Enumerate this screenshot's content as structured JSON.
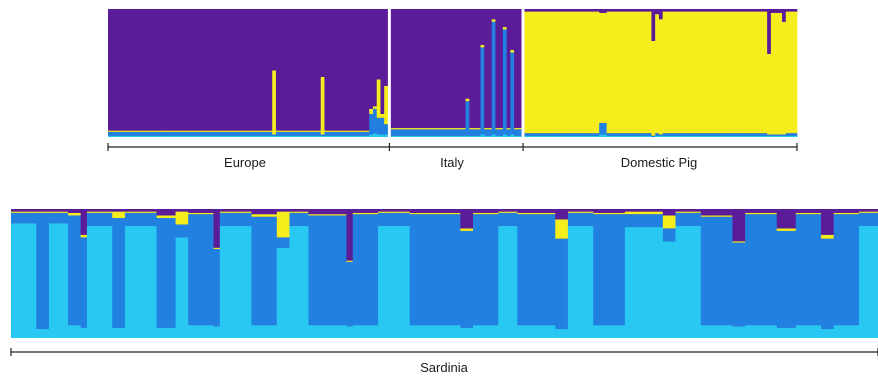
{
  "chart_data": [
    {
      "type": "bar",
      "stacked": true,
      "orientation": "vertical",
      "ylim": [
        0,
        1
      ],
      "cluster_colors": [
        "#5b1c99",
        "#f5ee1c",
        "#2180e0",
        "#29c8f2"
      ],
      "groups": [
        {
          "label": "Europe",
          "separator_after": true,
          "individuals": [
            {
              "n": 44,
              "proportions": [
                0.95,
                0.01,
                0.03,
                0.01
              ]
            },
            {
              "n": 1,
              "proportions": [
                0.48,
                0.5,
                0.01,
                0.01
              ]
            },
            {
              "n": 12,
              "proportions": [
                0.95,
                0.01,
                0.03,
                0.01
              ]
            },
            {
              "n": 1,
              "proportions": [
                0.53,
                0.45,
                0.01,
                0.01
              ]
            },
            {
              "n": 12,
              "proportions": [
                0.95,
                0.01,
                0.03,
                0.01
              ]
            },
            {
              "n": 1,
              "proportions": [
                0.78,
                0.04,
                0.16,
                0.02
              ]
            },
            {
              "n": 1,
              "proportions": [
                0.76,
                0.02,
                0.19,
                0.03
              ]
            },
            {
              "n": 1,
              "proportions": [
                0.55,
                0.3,
                0.13,
                0.02
              ]
            },
            {
              "n": 1,
              "proportions": [
                0.82,
                0.03,
                0.13,
                0.02
              ]
            },
            {
              "n": 1,
              "proportions": [
                0.6,
                0.3,
                0.08,
                0.02
              ]
            }
          ]
        },
        {
          "label": "Italy",
          "separator_after": true,
          "individuals": [
            {
              "n": 20,
              "proportions": [
                0.93,
                0.01,
                0.05,
                0.01
              ]
            },
            {
              "n": 1,
              "proportions": [
                0.7,
                0.02,
                0.27,
                0.01
              ]
            },
            {
              "n": 3,
              "proportions": [
                0.93,
                0.01,
                0.05,
                0.01
              ]
            },
            {
              "n": 1,
              "proportions": [
                0.28,
                0.02,
                0.68,
                0.02
              ]
            },
            {
              "n": 2,
              "proportions": [
                0.93,
                0.01,
                0.05,
                0.01
              ]
            },
            {
              "n": 1,
              "proportions": [
                0.08,
                0.02,
                0.88,
                0.02
              ]
            },
            {
              "n": 2,
              "proportions": [
                0.93,
                0.01,
                0.05,
                0.01
              ]
            },
            {
              "n": 1,
              "proportions": [
                0.14,
                0.02,
                0.82,
                0.02
              ]
            },
            {
              "n": 1,
              "proportions": [
                0.93,
                0.01,
                0.05,
                0.01
              ]
            },
            {
              "n": 1,
              "proportions": [
                0.32,
                0.02,
                0.64,
                0.02
              ]
            },
            {
              "n": 2,
              "proportions": [
                0.93,
                0.01,
                0.05,
                0.01
              ]
            }
          ]
        },
        {
          "label": "Domestic Pig",
          "separator_after": false,
          "individuals": [
            {
              "n": 20,
              "proportions": [
                0.02,
                0.95,
                0.02,
                0.01
              ]
            },
            {
              "n": 2,
              "proportions": [
                0.03,
                0.86,
                0.09,
                0.02
              ]
            },
            {
              "n": 12,
              "proportions": [
                0.02,
                0.95,
                0.02,
                0.01
              ]
            },
            {
              "n": 1,
              "proportions": [
                0.25,
                0.74,
                0.01,
                0.0
              ]
            },
            {
              "n": 1,
              "proportions": [
                0.04,
                0.93,
                0.02,
                0.01
              ]
            },
            {
              "n": 1,
              "proportions": [
                0.08,
                0.9,
                0.01,
                0.01
              ]
            },
            {
              "n": 28,
              "proportions": [
                0.02,
                0.95,
                0.02,
                0.01
              ]
            },
            {
              "n": 1,
              "proportions": [
                0.35,
                0.63,
                0.01,
                0.01
              ]
            },
            {
              "n": 3,
              "proportions": [
                0.03,
                0.95,
                0.01,
                0.01
              ]
            },
            {
              "n": 1,
              "proportions": [
                0.1,
                0.88,
                0.01,
                0.01
              ]
            },
            {
              "n": 3,
              "proportions": [
                0.02,
                0.95,
                0.02,
                0.01
              ]
            }
          ]
        }
      ]
    },
    {
      "type": "bar",
      "stacked": true,
      "orientation": "vertical",
      "ylim": [
        0,
        1
      ],
      "cluster_colors": [
        "#5b1c99",
        "#f5ee1c",
        "#2180e0",
        "#29c8f2"
      ],
      "groups": [
        {
          "label": "Sardinia",
          "separator_after": false,
          "individuals": [
            {
              "n": 4,
              "proportions": [
                0.02,
                0.01,
                0.08,
                0.89
              ]
            },
            {
              "n": 2,
              "proportions": [
                0.02,
                0.01,
                0.9,
                0.07
              ]
            },
            {
              "n": 3,
              "proportions": [
                0.02,
                0.01,
                0.08,
                0.89
              ]
            },
            {
              "n": 2,
              "proportions": [
                0.03,
                0.02,
                0.85,
                0.1
              ]
            },
            {
              "n": 1,
              "proportions": [
                0.2,
                0.02,
                0.7,
                0.08
              ]
            },
            {
              "n": 4,
              "proportions": [
                0.02,
                0.01,
                0.1,
                0.87
              ]
            },
            {
              "n": 2,
              "proportions": [
                0.02,
                0.05,
                0.85,
                0.08
              ]
            },
            {
              "n": 5,
              "proportions": [
                0.02,
                0.01,
                0.1,
                0.87
              ]
            },
            {
              "n": 3,
              "proportions": [
                0.05,
                0.02,
                0.85,
                0.08
              ]
            },
            {
              "n": 2,
              "proportions": [
                0.02,
                0.1,
                0.1,
                0.78
              ]
            },
            {
              "n": 4,
              "proportions": [
                0.03,
                0.01,
                0.86,
                0.1
              ]
            },
            {
              "n": 1,
              "proportions": [
                0.3,
                0.01,
                0.6,
                0.09
              ]
            },
            {
              "n": 5,
              "proportions": [
                0.02,
                0.01,
                0.1,
                0.87
              ]
            },
            {
              "n": 4,
              "proportions": [
                0.04,
                0.02,
                0.84,
                0.1
              ]
            },
            {
              "n": 2,
              "proportions": [
                0.02,
                0.2,
                0.08,
                0.7
              ]
            },
            {
              "n": 3,
              "proportions": [
                0.02,
                0.01,
                0.1,
                0.87
              ]
            },
            {
              "n": 6,
              "proportions": [
                0.04,
                0.01,
                0.85,
                0.1
              ]
            },
            {
              "n": 1,
              "proportions": [
                0.4,
                0.01,
                0.5,
                0.09
              ]
            },
            {
              "n": 4,
              "proportions": [
                0.03,
                0.01,
                0.86,
                0.1
              ]
            },
            {
              "n": 5,
              "proportions": [
                0.02,
                0.01,
                0.1,
                0.87
              ]
            },
            {
              "n": 8,
              "proportions": [
                0.03,
                0.01,
                0.86,
                0.1
              ]
            },
            {
              "n": 2,
              "proportions": [
                0.15,
                0.02,
                0.75,
                0.08
              ]
            },
            {
              "n": 4,
              "proportions": [
                0.03,
                0.01,
                0.86,
                0.1
              ]
            },
            {
              "n": 3,
              "proportions": [
                0.02,
                0.01,
                0.1,
                0.87
              ]
            },
            {
              "n": 6,
              "proportions": [
                0.03,
                0.01,
                0.86,
                0.1
              ]
            },
            {
              "n": 2,
              "proportions": [
                0.08,
                0.15,
                0.7,
                0.07
              ]
            },
            {
              "n": 4,
              "proportions": [
                0.02,
                0.01,
                0.1,
                0.87
              ]
            },
            {
              "n": 5,
              "proportions": [
                0.03,
                0.01,
                0.86,
                0.1
              ]
            },
            {
              "n": 6,
              "proportions": [
                0.02,
                0.02,
                0.1,
                0.86
              ]
            },
            {
              "n": 2,
              "proportions": [
                0.05,
                0.1,
                0.1,
                0.75
              ]
            },
            {
              "n": 4,
              "proportions": [
                0.02,
                0.01,
                0.1,
                0.87
              ]
            },
            {
              "n": 5,
              "proportions": [
                0.05,
                0.01,
                0.84,
                0.1
              ]
            },
            {
              "n": 2,
              "proportions": [
                0.25,
                0.01,
                0.65,
                0.09
              ]
            },
            {
              "n": 5,
              "proportions": [
                0.03,
                0.01,
                0.86,
                0.1
              ]
            },
            {
              "n": 3,
              "proportions": [
                0.15,
                0.02,
                0.75,
                0.08
              ]
            },
            {
              "n": 4,
              "proportions": [
                0.03,
                0.01,
                0.86,
                0.1
              ]
            },
            {
              "n": 2,
              "proportions": [
                0.2,
                0.03,
                0.7,
                0.07
              ]
            },
            {
              "n": 4,
              "proportions": [
                0.03,
                0.01,
                0.86,
                0.1
              ]
            },
            {
              "n": 3,
              "proportions": [
                0.02,
                0.01,
                0.1,
                0.87
              ]
            }
          ]
        }
      ]
    }
  ]
}
